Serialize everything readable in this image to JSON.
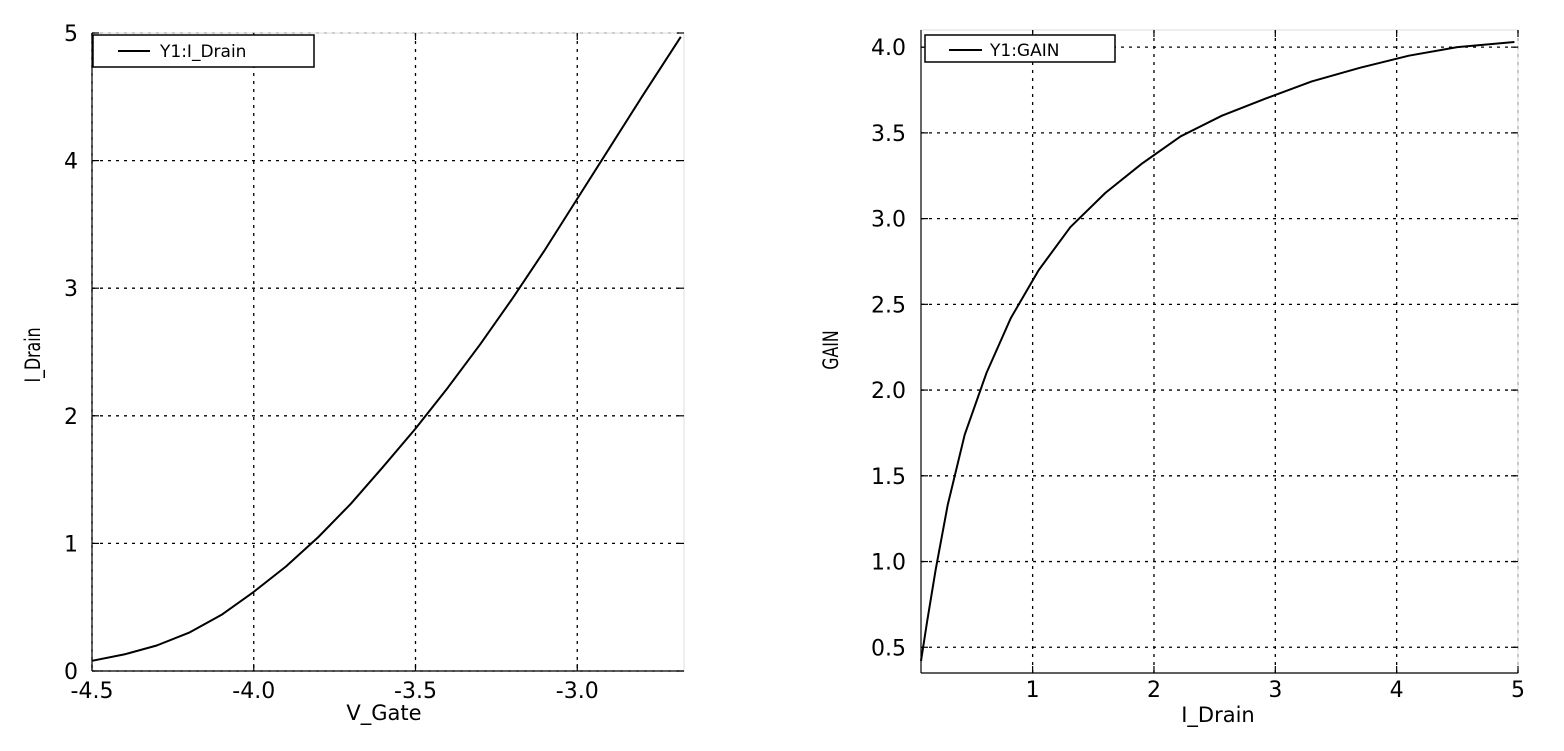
{
  "chart_data": [
    {
      "type": "line",
      "title": "",
      "xlabel": "V_Gate",
      "ylabel": "I_Drain",
      "xlim": [
        -4.5,
        -2.67
      ],
      "ylim": [
        0,
        5
      ],
      "xticks": [
        -4.5,
        -4.0,
        -3.5,
        -3.0
      ],
      "xtick_labels": [
        "-4.5",
        "-4.0",
        "-3.5",
        "-3.0"
      ],
      "yticks": [
        0,
        1,
        2,
        3,
        4,
        5
      ],
      "ytick_labels": [
        "0",
        "1",
        "2",
        "3",
        "4",
        "5"
      ],
      "grid": true,
      "legend_position": "top-left",
      "series": [
        {
          "name": "Y1:I_Drain",
          "color": "#000000",
          "x": [
            -4.5,
            -4.4,
            -4.3,
            -4.2,
            -4.1,
            -4.0,
            -3.9,
            -3.8,
            -3.7,
            -3.6,
            -3.5,
            -3.4,
            -3.3,
            -3.2,
            -3.1,
            -3.0,
            -2.9,
            -2.8,
            -2.68
          ],
          "y": [
            0.08,
            0.13,
            0.2,
            0.3,
            0.44,
            0.62,
            0.82,
            1.05,
            1.31,
            1.6,
            1.9,
            2.22,
            2.56,
            2.92,
            3.3,
            3.7,
            4.1,
            4.5,
            4.97
          ]
        }
      ]
    },
    {
      "type": "line",
      "title": "",
      "xlabel": "I_Drain",
      "ylabel": "GAIN",
      "xlim": [
        0.08,
        5.0
      ],
      "ylim": [
        0.35,
        4.1
      ],
      "xticks": [
        1,
        2,
        3,
        4,
        5
      ],
      "xtick_labels": [
        "1",
        "2",
        "3",
        "4",
        "5"
      ],
      "yticks": [
        0.5,
        1.0,
        1.5,
        2.0,
        2.5,
        3.0,
        3.5,
        4.0
      ],
      "ytick_labels": [
        "0.5",
        "1.0",
        "1.5",
        "2.0",
        "2.5",
        "3.0",
        "3.5",
        "4.0"
      ],
      "grid": true,
      "legend_position": "top-left",
      "series": [
        {
          "name": "Y1:GAIN",
          "color": "#000000",
          "x": [
            0.08,
            0.13,
            0.2,
            0.3,
            0.44,
            0.62,
            0.82,
            1.05,
            1.31,
            1.6,
            1.9,
            2.22,
            2.56,
            2.92,
            3.3,
            3.7,
            4.1,
            4.5,
            4.97
          ],
          "y": [
            0.42,
            0.65,
            0.95,
            1.33,
            1.74,
            2.1,
            2.42,
            2.7,
            2.95,
            3.15,
            3.32,
            3.48,
            3.6,
            3.7,
            3.8,
            3.88,
            3.95,
            4.0,
            4.03
          ]
        }
      ]
    }
  ]
}
